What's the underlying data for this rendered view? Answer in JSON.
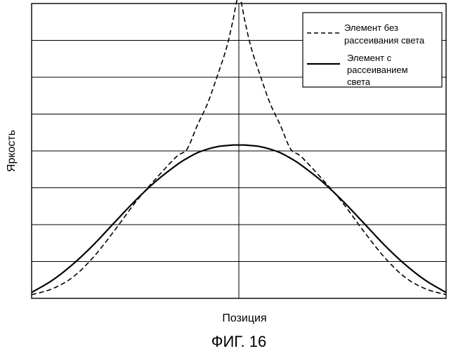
{
  "figure_caption": "ФИГ. 16",
  "chart_data": {
    "type": "line",
    "title": "",
    "xlabel": "Позиция",
    "ylabel": "Яркость",
    "xlim": [
      -1,
      1
    ],
    "ylim": [
      0,
      8
    ],
    "grid": {
      "horizontal": true,
      "vertical": "center line only"
    },
    "x_tick_labels": [],
    "y_tick_labels": [],
    "legend": {
      "placement": "top-right",
      "entries": [
        {
          "label_lines": [
            "Элемент без",
            "рассеивания света"
          ],
          "style": "dashed"
        },
        {
          "label_lines": [
            "Элемент с",
            "рассеиванием",
            "света"
          ],
          "style": "solid"
        }
      ]
    },
    "x": [
      -1.0,
      -0.9,
      -0.8,
      -0.7,
      -0.6,
      -0.5,
      -0.4,
      -0.3,
      -0.25,
      -0.2,
      -0.15,
      -0.1,
      -0.07,
      -0.05,
      -0.03,
      0.0,
      0.03,
      0.05,
      0.07,
      0.1,
      0.15,
      0.2,
      0.25,
      0.3,
      0.4,
      0.5,
      0.6,
      0.7,
      0.8,
      0.9,
      1.0
    ],
    "series": [
      {
        "style": "dashed",
        "values": [
          0.1,
          0.26,
          0.58,
          1.13,
          1.84,
          2.6,
          3.25,
          3.85,
          4.05,
          4.7,
          5.3,
          6.1,
          6.6,
          7.0,
          7.5,
          8.2,
          7.5,
          7.0,
          6.6,
          6.1,
          5.3,
          4.7,
          4.05,
          3.85,
          3.25,
          2.6,
          1.84,
          1.13,
          0.58,
          0.26,
          0.1
        ]
      },
      {
        "style": "solid",
        "values": [
          0.16,
          0.49,
          0.93,
          1.46,
          2.06,
          2.65,
          3.18,
          3.62,
          3.8,
          3.95,
          4.05,
          4.12,
          4.14,
          4.15,
          4.16,
          4.16,
          4.16,
          4.15,
          4.14,
          4.12,
          4.05,
          3.95,
          3.8,
          3.62,
          3.18,
          2.65,
          2.06,
          1.46,
          0.93,
          0.49,
          0.16
        ]
      }
    ]
  }
}
